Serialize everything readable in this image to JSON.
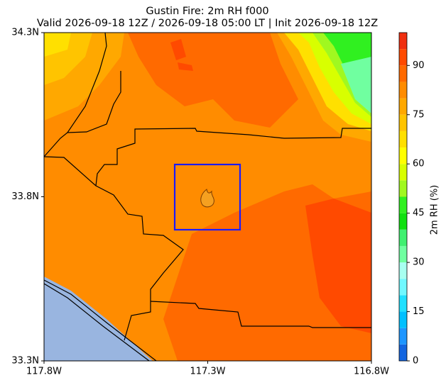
{
  "chart_data": {
    "type": "map",
    "title": "Gustin Fire: 2m RH f000",
    "subtitle": "Valid 2026-09-18 12Z / 2026-09-18 05:00 LT | Init 2026-09-18 12Z",
    "xlim": [
      -117.8,
      -116.8
    ],
    "xticks": [
      {
        "value": -117.8,
        "label": "117.8W"
      },
      {
        "value": -117.3,
        "label": "117.3W"
      },
      {
        "value": -116.8,
        "label": "116.8W"
      }
    ],
    "ylim": [
      33.3,
      34.3
    ],
    "yticks": [
      {
        "value": 33.3,
        "label": "33.3N"
      },
      {
        "value": 33.8,
        "label": "33.8N"
      },
      {
        "value": 34.3,
        "label": "34.3N"
      }
    ],
    "colorbar": {
      "label": "2m RH (%)",
      "lim": [
        0,
        100
      ],
      "ticks": [
        0,
        15,
        30,
        45,
        60,
        75,
        90
      ],
      "levels": [
        0,
        5,
        10,
        15,
        20,
        25,
        30,
        35,
        40,
        45,
        50,
        55,
        60,
        65,
        70,
        75,
        80,
        85,
        90,
        95,
        100
      ],
      "colors": [
        "#1466e0",
        "#1e96ff",
        "#00c0ff",
        "#20e0ff",
        "#70f8ff",
        "#a8fff0",
        "#70ffa0",
        "#40f070",
        "#10e010",
        "#30f020",
        "#a0f820",
        "#d8ff00",
        "#ffff00",
        "#ffe000",
        "#ffc400",
        "#ffa800",
        "#ff8c00",
        "#ff6a00",
        "#ff4a00",
        "#f03010"
      ]
    }
  }
}
